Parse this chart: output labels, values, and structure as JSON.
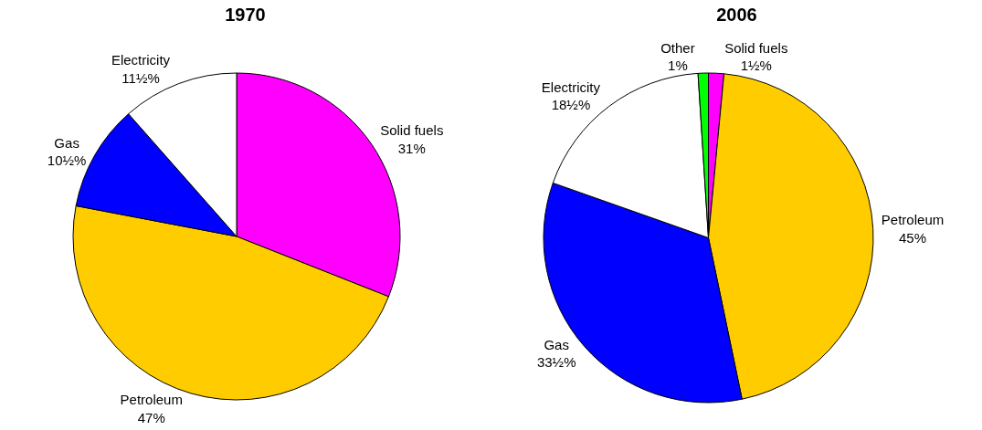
{
  "chart_data": [
    {
      "type": "pie",
      "title": "1970",
      "categories": [
        "Solid fuels",
        "Petroleum",
        "Gas",
        "Electricity"
      ],
      "values": [
        31,
        47,
        10.5,
        11.5
      ],
      "value_labels": [
        "31%",
        "47%",
        "10½%",
        "11½%"
      ],
      "colors": [
        "#ff00ff",
        "#ffcc00",
        "#0000ff",
        "#ffffff"
      ]
    },
    {
      "type": "pie",
      "title": "2006",
      "categories": [
        "Solid fuels",
        "Petroleum",
        "Gas",
        "Electricity",
        "Other"
      ],
      "values": [
        1.5,
        45,
        33.5,
        18.5,
        1
      ],
      "value_labels": [
        "1½%",
        "45%",
        "33½%",
        "18½%",
        "1%"
      ],
      "colors": [
        "#ff00ff",
        "#ffcc00",
        "#0000ff",
        "#ffffff",
        "#00ff00"
      ]
    }
  ]
}
